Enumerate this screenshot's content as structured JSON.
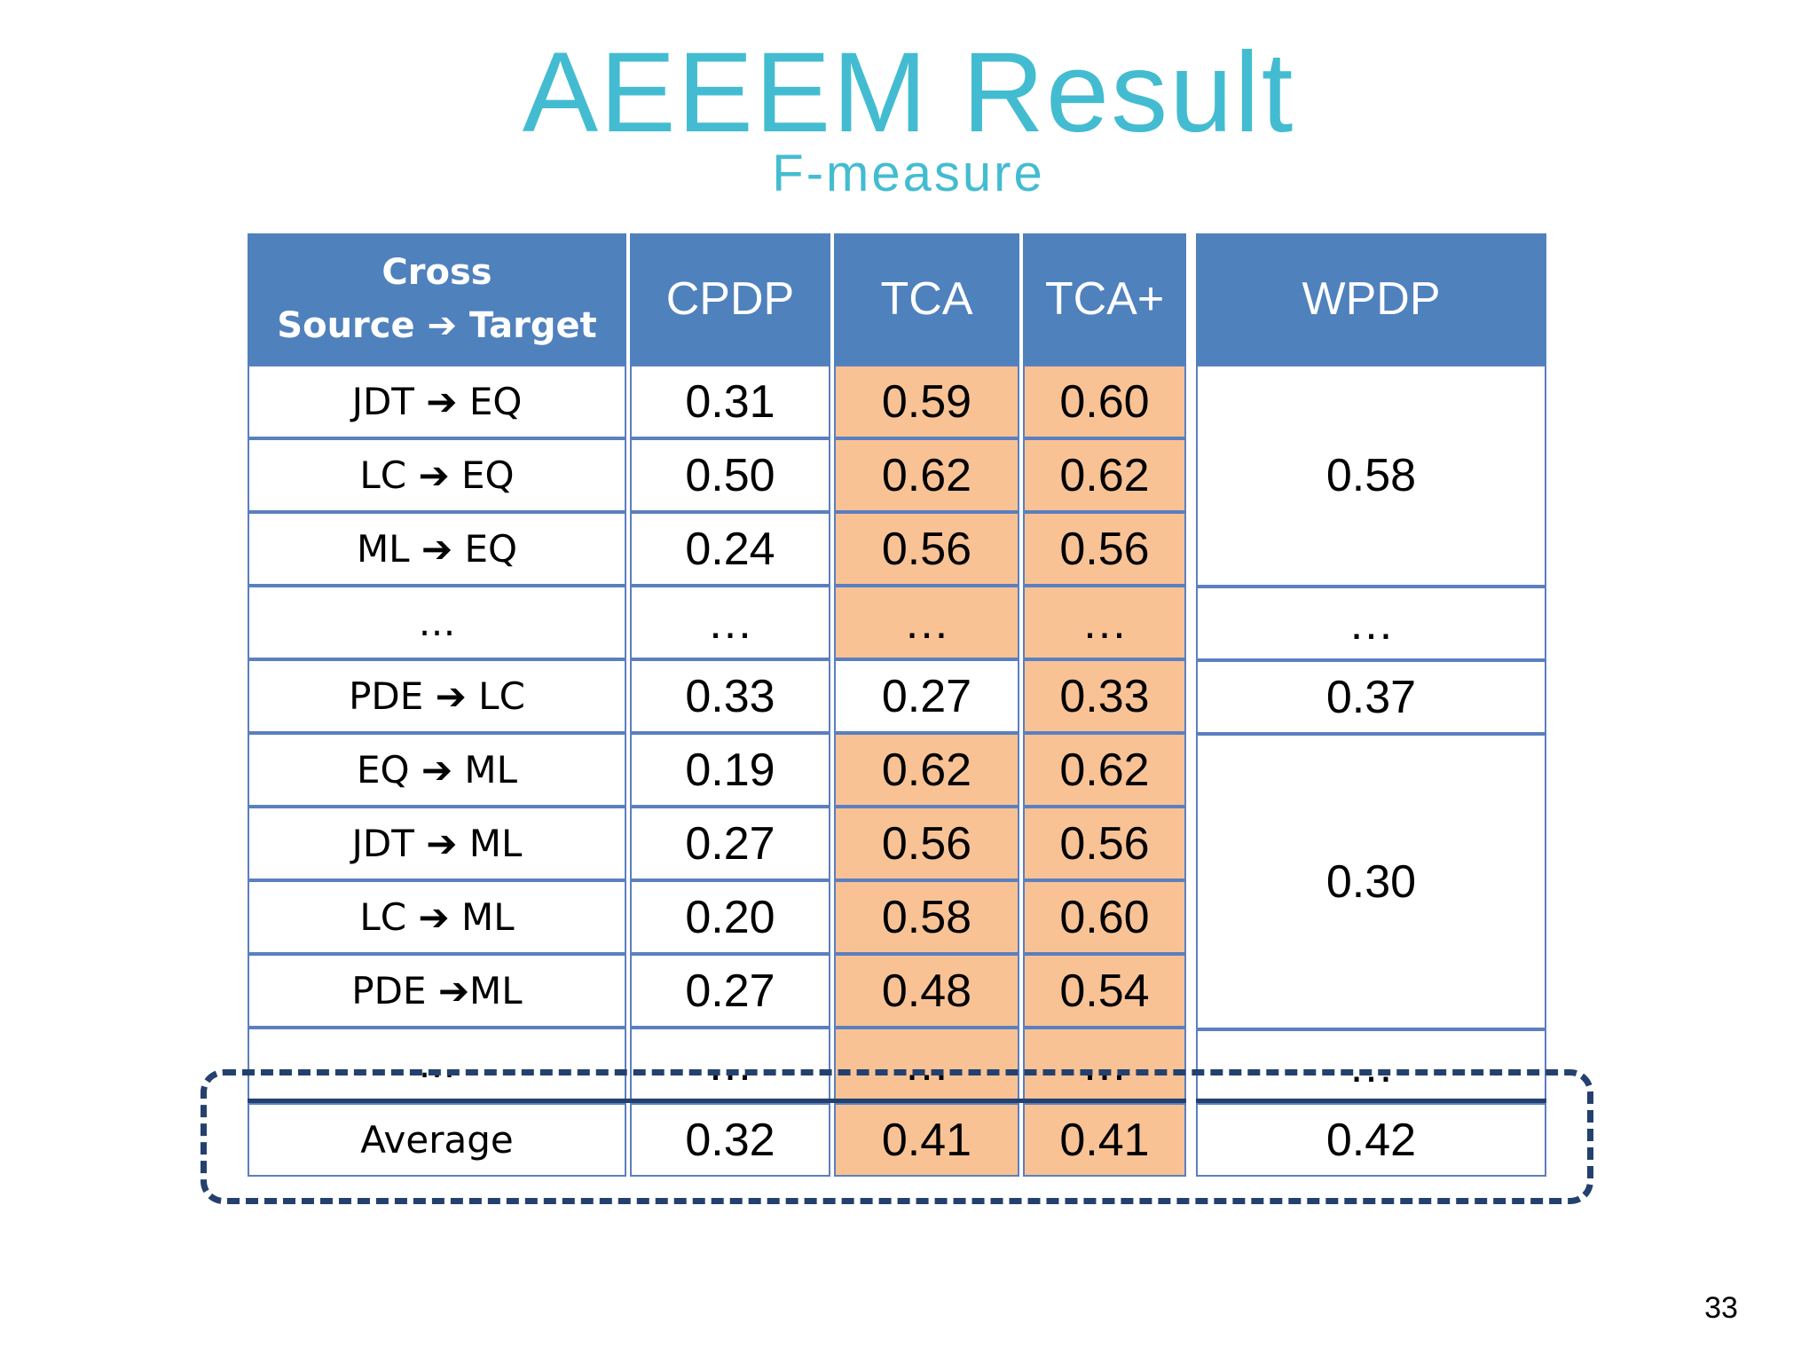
{
  "slide": {
    "title": "AEEEM Result",
    "subtitle": "F-measure",
    "page_number": "33"
  },
  "table": {
    "header": {
      "first_line1": "Cross",
      "first_line2": "Source ➔ Target",
      "cpdp": "CPDP",
      "tca": "TCA",
      "tcaplus": "TCA+",
      "wpdp": "WPDP"
    },
    "rows": [
      {
        "label": "JDT ➔ EQ",
        "cpdp": "0.31",
        "tca": "0.59",
        "tcaplus": "0.60",
        "tca_highlight": true
      },
      {
        "label": "LC ➔ EQ",
        "cpdp": "0.50",
        "tca": "0.62",
        "tcaplus": "0.62",
        "tca_highlight": true
      },
      {
        "label": "ML ➔ EQ",
        "cpdp": "0.24",
        "tca": "0.56",
        "tcaplus": "0.56",
        "tca_highlight": true
      },
      {
        "label": "…",
        "cpdp": "…",
        "tca": "…",
        "tcaplus": "…",
        "tca_highlight": true
      },
      {
        "label": "PDE ➔ LC",
        "cpdp": "0.33",
        "tca": "0.27",
        "tcaplus": "0.33",
        "tca_highlight": false
      },
      {
        "label": "EQ ➔ ML",
        "cpdp": "0.19",
        "tca": "0.62",
        "tcaplus": "0.62",
        "tca_highlight": true
      },
      {
        "label": "JDT ➔ ML",
        "cpdp": "0.27",
        "tca": "0.56",
        "tcaplus": "0.56",
        "tca_highlight": true
      },
      {
        "label": "LC ➔ ML",
        "cpdp": "0.20",
        "tca": "0.58",
        "tcaplus": "0.60",
        "tca_highlight": true
      },
      {
        "label": "PDE ➔ML",
        "cpdp": "0.27",
        "tca": "0.48",
        "tcaplus": "0.54",
        "tca_highlight": true
      },
      {
        "label": "…",
        "cpdp": "…",
        "tca": "…",
        "tcaplus": "…",
        "tca_highlight": true
      }
    ],
    "wpdp": {
      "eq_group": "0.58",
      "ellipsis1": "…",
      "pde_lc": "0.37",
      "ml_group": "0.30",
      "ellipsis2": "…"
    },
    "average": {
      "label": "Average",
      "cpdp": "0.32",
      "tca": "0.41",
      "tcaplus": "0.41",
      "wpdp": "0.42"
    },
    "colors": {
      "header_bg": "#4f81bd",
      "highlight": "#f8c295",
      "title": "#43bcd1",
      "dashed_box": "#24406e"
    }
  }
}
